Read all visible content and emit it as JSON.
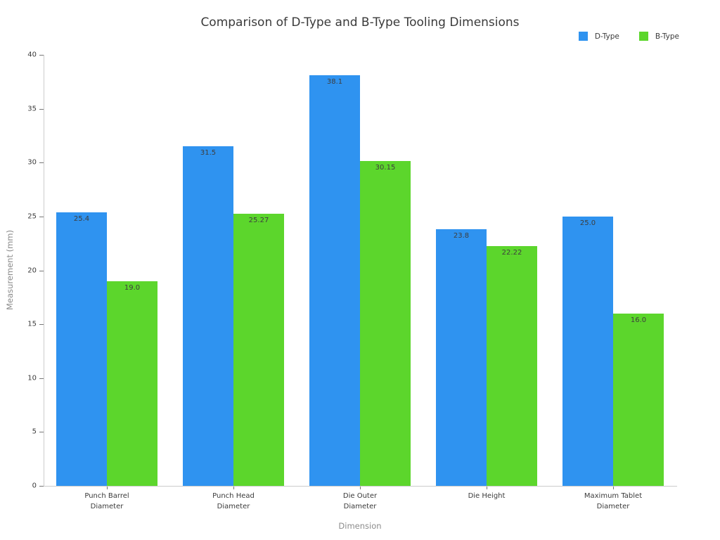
{
  "chart_data": {
    "type": "bar",
    "title": "Comparison of D-Type and B-Type Tooling Dimensions",
    "xlabel": "Dimension",
    "ylabel": "Measurement (mm)",
    "ylim": [
      0,
      40
    ],
    "ytick_step": 5,
    "ytick_labels": [
      "0",
      "5",
      "10",
      "15",
      "20",
      "25",
      "30",
      "35",
      "40"
    ],
    "grid": false,
    "legend_position": "top-right",
    "background_color": "#ffffff",
    "categories": [
      "Punch Barrel Diameter",
      "Punch Head Diameter",
      "Die Outer Diameter",
      "Die Height",
      "Maximum Tablet Diameter"
    ],
    "category_lines": [
      [
        "Punch Barrel",
        "Diameter"
      ],
      [
        "Punch Head",
        "Diameter"
      ],
      [
        "Die Outer",
        "Diameter"
      ],
      [
        "Die Height"
      ],
      [
        "Maximum Tablet",
        "Diameter"
      ]
    ],
    "series": [
      {
        "name": "D-Type",
        "color": "#2f93f0",
        "values": [
          25.4,
          31.5,
          38.1,
          23.8,
          25.0
        ],
        "labels": [
          "25.4",
          "31.5",
          "38.1",
          "23.8",
          "25.0"
        ]
      },
      {
        "name": "B-Type",
        "color": "#5cd62c",
        "values": [
          19.0,
          25.27,
          30.15,
          22.22,
          16.0
        ],
        "labels": [
          "19.0",
          "25.27",
          "30.15",
          "22.22",
          "16.0"
        ]
      }
    ]
  }
}
